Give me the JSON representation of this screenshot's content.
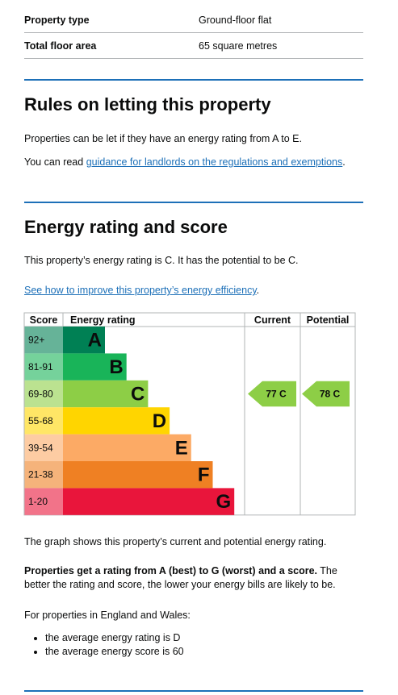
{
  "summary": [
    {
      "label": "Property type",
      "value": "Ground-floor flat"
    },
    {
      "label": "Total floor area",
      "value": "65 square metres"
    }
  ],
  "letting": {
    "title": "Rules on letting this property",
    "text": "Properties can be let if they have an energy rating from A to E.",
    "read_prefix": "You can read ",
    "link": "guidance for landlords on the regulations and exemptions",
    "read_suffix": "."
  },
  "rating": {
    "title": "Energy rating and score",
    "text": "This property’s energy rating is C. It has the potential to be C.",
    "link": "See how to improve this property’s energy efficiency",
    "link_suffix": ".",
    "chart": {
      "headers": [
        "Score",
        "Energy rating",
        "Current",
        "Potential"
      ],
      "bands": [
        {
          "score": "92+",
          "letter": "A",
          "color": "#008054",
          "light": "#66b398"
        },
        {
          "score": "81-91",
          "letter": "B",
          "color": "#19b459",
          "light": "#75d29b"
        },
        {
          "score": "69-80",
          "letter": "C",
          "color": "#8dce46",
          "light": "#bbe290"
        },
        {
          "score": "55-68",
          "letter": "D",
          "color": "#ffd500",
          "light": "#ffe666"
        },
        {
          "score": "39-54",
          "letter": "E",
          "color": "#fcaa65",
          "light": "#fdcca3"
        },
        {
          "score": "21-38",
          "letter": "F",
          "color": "#ef8023",
          "light": "#f5b37b"
        },
        {
          "score": "1-20",
          "letter": "G",
          "color": "#e9153b",
          "light": "#f27389"
        }
      ],
      "current": "77 C",
      "potential": "78 C"
    },
    "graph_note": "The graph shows this property’s current and potential energy rating.",
    "bold": "Properties get a rating from A (best) to G (worst) and a score.",
    "rest": " The better the rating and score, the lower your energy bills are likely to be.",
    "england": "For properties in England and Wales:",
    "list": [
      "the average energy rating is D",
      "the average energy score is 60"
    ]
  }
}
